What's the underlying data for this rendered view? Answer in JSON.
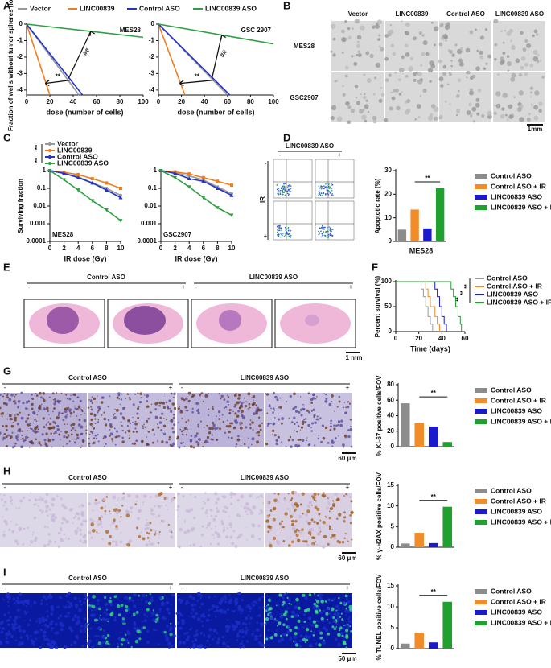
{
  "panel_labels": [
    "A",
    "B",
    "C",
    "D",
    "E",
    "F",
    "G",
    "H",
    "I"
  ],
  "panel_b": {
    "columns": [
      "Vector",
      "LINC00839",
      "Control ASO",
      "LINC00839 ASO"
    ],
    "rows": [
      "MES28",
      "GSC2907"
    ],
    "scale_bar": "1mm"
  },
  "panel_d": {
    "header": "LINC00839 ASO",
    "signs": [
      "-",
      "+"
    ],
    "row_label": "IR"
  },
  "groups": [
    "Control ASO",
    "LINC00839 ASO"
  ],
  "signs": [
    "-",
    "+"
  ],
  "scale_bars": {
    "e": "1 mm",
    "g": "60 μm",
    "h": "60 μm",
    "i": "50 μm"
  },
  "chart_data": [
    {
      "type": "line",
      "title": "MES28",
      "xlabel": "dose (number of cells)",
      "ylabel": "Fraction of wells without tumor spheres (log₁₀)",
      "xlim": [
        0,
        100
      ],
      "xticks": [
        0,
        20,
        40,
        60,
        80,
        100
      ],
      "ylim": [
        -4.3,
        0
      ],
      "yticks": [
        0,
        -1,
        -2,
        -3,
        -4
      ],
      "annotations": [
        "##",
        "**"
      ],
      "series": [
        {
          "name": "Vector",
          "color": "#999999",
          "x": [
            0,
            45
          ],
          "values": [
            0,
            -4.3
          ]
        },
        {
          "name": "LINC00839",
          "color": "#f07d1a",
          "x": [
            0,
            20
          ],
          "values": [
            0,
            -4.3
          ]
        },
        {
          "name": "Control ASO",
          "color": "#2233cc",
          "x": [
            0,
            48
          ],
          "values": [
            0,
            -4.3
          ]
        },
        {
          "name": "LINC00839 ASO",
          "color": "#2ea043",
          "x": [
            0,
            100
          ],
          "values": [
            0,
            -0.8
          ]
        }
      ]
    },
    {
      "type": "line",
      "title": "GSC 2907",
      "xlabel": "dose (number of cells)",
      "xlim": [
        0,
        100
      ],
      "xticks": [
        0,
        20,
        40,
        60,
        80,
        100
      ],
      "ylim": [
        -4.3,
        0
      ],
      "yticks": [
        0,
        -1,
        -2,
        -3,
        -4
      ],
      "annotations": [
        "##",
        "**"
      ],
      "series": [
        {
          "color": "#999999",
          "x": [
            0,
            60
          ],
          "values": [
            0,
            -4.3
          ]
        },
        {
          "color": "#f07d1a",
          "x": [
            0,
            23
          ],
          "values": [
            0,
            -4.3
          ]
        },
        {
          "color": "#2233cc",
          "x": [
            0,
            62
          ],
          "values": [
            0,
            -4.3
          ]
        },
        {
          "color": "#2ea043",
          "x": [
            0,
            100
          ],
          "values": [
            0,
            -1.2
          ]
        }
      ]
    },
    {
      "type": "line",
      "log_scale": true,
      "title": "MES28",
      "xlabel": "IR dose (Gy)",
      "ylabel": "Surviving fraction",
      "x": [
        0,
        2,
        4,
        6,
        8,
        10
      ],
      "xlim": [
        0,
        10
      ],
      "xticks": [
        0,
        2,
        4,
        6,
        8,
        10
      ],
      "ylim": [
        0.0001,
        1
      ],
      "yticks": [
        1,
        0.1,
        0.01,
        0.001,
        0.0001
      ],
      "annotations": [
        "**",
        "**"
      ],
      "series": [
        {
          "name": "Vector",
          "color": "#999999",
          "values": [
            1,
            0.7,
            0.45,
            0.2,
            0.1,
            0.04
          ]
        },
        {
          "name": "LINC00839",
          "color": "#f07d1a",
          "values": [
            1,
            0.8,
            0.6,
            0.35,
            0.2,
            0.1
          ]
        },
        {
          "name": "Control ASO",
          "color": "#2233cc",
          "values": [
            1,
            0.7,
            0.4,
            0.2,
            0.08,
            0.03
          ]
        },
        {
          "name": "LINC00839 ASO",
          "color": "#2ea043",
          "values": [
            1,
            0.3,
            0.08,
            0.02,
            0.006,
            0.0015
          ]
        }
      ]
    },
    {
      "type": "line",
      "log_scale": true,
      "title": "GSC2907",
      "xlabel": "IR dose (Gy)",
      "x": [
        0,
        2,
        4,
        6,
        8,
        10
      ],
      "xlim": [
        0,
        10
      ],
      "xticks": [
        0,
        2,
        4,
        6,
        8,
        10
      ],
      "ylim": [
        0.0001,
        1
      ],
      "yticks": [
        1,
        0.1,
        0.01,
        0.001,
        0.0001
      ],
      "series": [
        {
          "color": "#999999",
          "values": [
            1,
            0.75,
            0.5,
            0.3,
            0.12,
            0.05
          ]
        },
        {
          "color": "#f07d1a",
          "values": [
            1,
            0.85,
            0.65,
            0.4,
            0.25,
            0.15
          ]
        },
        {
          "color": "#2233cc",
          "values": [
            1,
            0.7,
            0.35,
            0.25,
            0.1,
            0.04
          ]
        },
        {
          "color": "#2ea043",
          "values": [
            1,
            0.4,
            0.12,
            0.03,
            0.008,
            0.003
          ]
        }
      ]
    },
    {
      "type": "bar",
      "xlabel": "MES28",
      "ylabel": "Apoptotic rate (%)",
      "categories": [
        "Control ASO",
        "Control ASO + IR",
        "LINC00839 ASO",
        "LINC00839 ASO + IR"
      ],
      "colors": [
        "#8c8c8c",
        "#f28c28",
        "#1a1acc",
        "#1fa02f"
      ],
      "values": [
        5,
        13.5,
        5.5,
        22.5
      ],
      "ylim": [
        0,
        30
      ],
      "yticks": [
        0,
        10,
        20,
        30
      ],
      "annotations": [
        "**"
      ]
    },
    {
      "type": "step",
      "xlabel": "Time (days)",
      "ylabel": "Percent survival (%)",
      "xlim": [
        0,
        60
      ],
      "xticks": [
        0,
        20,
        40,
        60
      ],
      "ylim": [
        0,
        100
      ],
      "yticks": [
        0,
        50,
        100
      ],
      "annotations": [
        "**",
        "**",
        "**"
      ],
      "series": [
        {
          "name": "Control ASO",
          "color": "#999999",
          "x": [
            0,
            22,
            24,
            26,
            28,
            30,
            32
          ],
          "values": [
            100,
            85,
            70,
            50,
            30,
            15,
            0
          ]
        },
        {
          "name": "Control ASO + IR",
          "color": "#f28c28",
          "x": [
            0,
            26,
            28,
            30,
            34,
            36,
            38
          ],
          "values": [
            100,
            85,
            70,
            50,
            30,
            15,
            0
          ]
        },
        {
          "name": "LINC00839 ASO",
          "color": "#1a1acc",
          "x": [
            0,
            34,
            36,
            38,
            40,
            42,
            44
          ],
          "values": [
            100,
            85,
            70,
            50,
            30,
            15,
            0
          ]
        },
        {
          "name": "LINC00839 ASO + IR",
          "color": "#1fa02f",
          "x": [
            0,
            48,
            50,
            52,
            54,
            56,
            57
          ],
          "values": [
            100,
            85,
            70,
            50,
            30,
            15,
            0
          ]
        }
      ]
    },
    {
      "type": "bar",
      "ylabel": "% Ki-67 positive cells/FOV",
      "categories": [
        "Control ASO",
        "Control ASO + IR",
        "LINC00839 ASO",
        "LINC00839 ASO + IR"
      ],
      "colors": [
        "#8c8c8c",
        "#f28c28",
        "#1a1acc",
        "#1fa02f"
      ],
      "values": [
        56,
        31,
        26,
        6
      ],
      "ylim": [
        0,
        80
      ],
      "yticks": [
        0,
        20,
        40,
        60,
        80
      ],
      "annotations": [
        "**"
      ]
    },
    {
      "type": "bar",
      "ylabel": "% γ-H2AX positive cells/FOV",
      "categories": [
        "Control ASO",
        "Control ASO + IR",
        "LINC00839 ASO",
        "LINC00839 ASO + IR"
      ],
      "colors": [
        "#8c8c8c",
        "#f28c28",
        "#1a1acc",
        "#1fa02f"
      ],
      "values": [
        0.9,
        3.5,
        1.0,
        9.8
      ],
      "ylim": [
        0,
        15
      ],
      "yticks": [
        0,
        5,
        10,
        15
      ],
      "annotations": [
        "**"
      ]
    },
    {
      "type": "bar",
      "ylabel": "% TUNEL positive cells/FOV",
      "categories": [
        "Control ASO",
        "Control ASO + IR",
        "LINC00839 ASO",
        "LINC00839 ASO + IR"
      ],
      "colors": [
        "#8c8c8c",
        "#f28c28",
        "#1a1acc",
        "#1fa02f"
      ],
      "values": [
        1.2,
        3.8,
        1.5,
        11.2
      ],
      "ylim": [
        0,
        15
      ],
      "yticks": [
        0,
        5,
        10,
        15
      ],
      "annotations": [
        "**"
      ]
    }
  ]
}
